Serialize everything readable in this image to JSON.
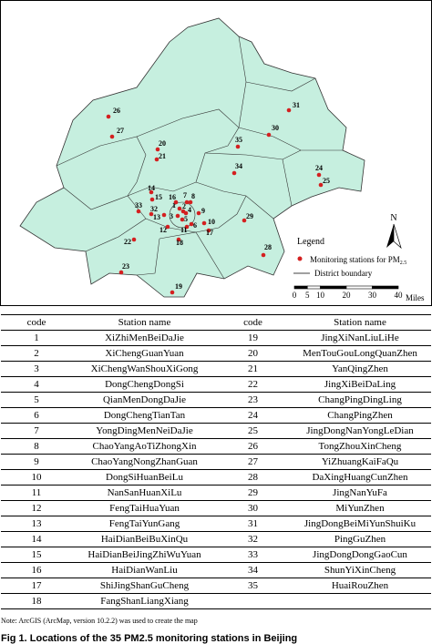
{
  "map": {
    "stations": [
      "1",
      "2",
      "3",
      "4",
      "5",
      "6",
      "7",
      "8",
      "9",
      "10",
      "11",
      "12",
      "13",
      "14",
      "15",
      "16",
      "17",
      "18",
      "19",
      "20",
      "21",
      "22",
      "23",
      "24",
      "25",
      "26",
      "27",
      "28",
      "29",
      "30",
      "31",
      "32",
      "33",
      "34",
      "35"
    ],
    "legend": {
      "title": "Legend",
      "station_label": "Monitoring stations for PM",
      "station_sub": "2.5",
      "boundary_label": "District boundary"
    },
    "north": "N",
    "scale": {
      "ticks": [
        0,
        5,
        10,
        20,
        30,
        40
      ],
      "unit": "Miles"
    }
  },
  "table": {
    "header": [
      "code",
      "Station name",
      "code",
      "Station name"
    ],
    "rows": [
      [
        1,
        "XiZhiMenBeiDaJie",
        19,
        "JingXiNanLiuLiHe"
      ],
      [
        2,
        "XiChengGuanYuan",
        20,
        "MenTouGouLongQuanZhen"
      ],
      [
        3,
        "XiChengWanShouXiGong",
        21,
        "YanQingZhen"
      ],
      [
        4,
        "DongChengDongSi",
        22,
        "JingXiBeiDaLing"
      ],
      [
        5,
        "QianMenDongDaJie",
        23,
        "ChangPingDingLing"
      ],
      [
        6,
        "DongChengTianTan",
        24,
        "ChangPingZhen"
      ],
      [
        7,
        "YongDingMenNeiDaJie",
        25,
        "JingDongNanYongLeDian"
      ],
      [
        8,
        "ChaoYangAoTiZhongXin",
        26,
        "TongZhouXinCheng"
      ],
      [
        9,
        "ChaoYangNongZhanGuan",
        27,
        "YiZhuangKaiFaQu"
      ],
      [
        10,
        "DongSiHuanBeiLu",
        28,
        "DaXingHuangCunZhen"
      ],
      [
        11,
        "NanSanHuanXiLu",
        29,
        "JingNanYuFa"
      ],
      [
        12,
        "FengTaiHuaYuan",
        30,
        "MiYunZhen"
      ],
      [
        13,
        "FengTaiYunGang",
        31,
        "JingDongBeiMiYunShuiKu"
      ],
      [
        14,
        "HaiDianBeiBuXinQu",
        32,
        "PingGuZhen"
      ],
      [
        15,
        "HaiDianBeiJingZhiWuYuan",
        33,
        "JingDongDongGaoCun"
      ],
      [
        16,
        "HaiDianWanLiu",
        34,
        "ShunYiXinCheng"
      ],
      [
        17,
        "ShiJingShanGuCheng",
        35,
        "HuaiRouZhen"
      ],
      [
        18,
        "FangShanLiangXiang"
      ]
    ]
  },
  "note": "Note: ArcGIS (ArcMap, version 10.2.2) was used to create the map",
  "caption": "Fig 1. Locations of the 35 PM2.5 monitoring stations in Beijing"
}
